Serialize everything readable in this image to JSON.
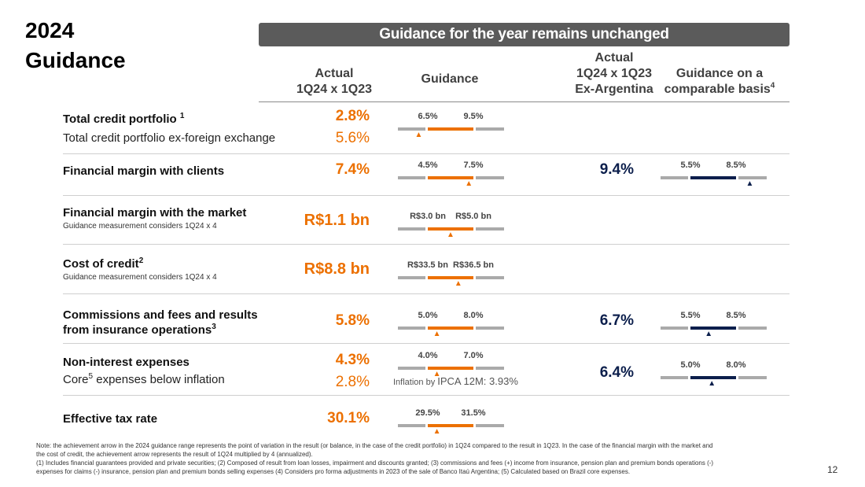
{
  "title": {
    "line1": "2024",
    "line2": "Guidance"
  },
  "banner": "Guidance for the year remains unchanged",
  "columns": {
    "actual": {
      "line1": "Actual",
      "line2": "1Q24 x 1Q23"
    },
    "guidance": "Guidance",
    "actual_ex_arg": {
      "line1": "Actual",
      "line2": "1Q24 x 1Q23",
      "line3": "Ex-Argentina"
    },
    "comparable": {
      "line1": "Guidance on a",
      "line2": "comparable basis",
      "sup": "4"
    }
  },
  "rows": [
    {
      "label": "Total credit portfolio ",
      "label_sup": "1",
      "sub_label": "Total credit portfolio  ex-foreign exchange",
      "actual": "2.8%",
      "sub_actual": "5.6%",
      "guidance": {
        "low": "6.5%",
        "high": "9.5%",
        "arrow_position": -0.2
      }
    },
    {
      "label": "Financial margin with clients",
      "actual": "7.4%",
      "guidance": {
        "low": "4.5%",
        "high": "7.5%",
        "arrow_position": 0.9
      },
      "actual_ex_arg": "9.4%",
      "comparable": {
        "low": "5.5%",
        "high": "8.5%",
        "arrow_position": 1.3
      }
    },
    {
      "label": "Financial margin with the market",
      "note": "Guidance measurement considers 1Q24 x 4",
      "actual": "R$1.1 bn",
      "guidance": {
        "low": "R$3.0 bn",
        "high": "R$5.0 bn",
        "arrow_position": 0.5
      }
    },
    {
      "label": "Cost of credit",
      "label_sup": "2",
      "note": "Guidance measurement considers 1Q24 x 4",
      "actual": "R$8.8 bn",
      "guidance": {
        "low": "R$33.5 bn",
        "high": "R$36.5 bn",
        "arrow_position": 0.67
      }
    },
    {
      "label": "Commissions and fees and results",
      "label_line2": "from insurance operations",
      "label_sup": "3",
      "actual": "5.8%",
      "guidance": {
        "low": "5.0%",
        "high": "8.0%",
        "arrow_position": 0.2
      },
      "actual_ex_arg": "6.7%",
      "comparable": {
        "low": "5.5%",
        "high": "8.5%",
        "arrow_position": 0.4
      }
    },
    {
      "label": "Non-interest expenses",
      "sub_label_prefix": "Core",
      "sub_label_sup": "5",
      "sub_label_suffix": " expenses below inflation",
      "actual": "4.3%",
      "sub_actual": "2.8%",
      "guidance": {
        "low": "4.0%",
        "high": "7.0%",
        "arrow_position": 0.2
      },
      "inflation_note_prefix": "Inflation by ",
      "inflation_note_value": "IPCA 12M: 3.93%",
      "actual_ex_arg": "6.4%",
      "comparable": {
        "low": "5.0%",
        "high": "8.0%",
        "arrow_position": 0.47
      }
    },
    {
      "label": "Effective tax rate",
      "actual": "30.1%",
      "guidance": {
        "low": "29.5%",
        "high": "31.5%",
        "arrow_position": 0.2
      }
    }
  ],
  "footnote": {
    "line1": "Note: the achievement arrow in the 2024 guidance range represents the point of variation in the result (or balance, in the case of the credit portfolio) in 1Q24 compared to the result in 1Q23. In the case of the financial margin with the market and",
    "line2": "the cost of credit, the achievement arrow represents the result of 1Q24 multiplied by 4 (annualized).",
    "line3": "(1) Includes financial guarantees provided and private securities; (2) Composed of result from loan losses, impairment and discounts granted; (3) commissions and fees (+) income from insurance, pension plan and premium bonds operations (-)",
    "line4": "expenses for claims (-) insurance, pension plan and premium bonds selling expenses (4) Considers pro forma adjustments in 2023 of the sale of Banco Itaú Argentina; (5) Calculated based on Brazil core expenses."
  },
  "page_number": "12",
  "colors": {
    "orange": "#ec7000",
    "navy": "#0c1f4c",
    "banner": "#5b5b5b",
    "grey_bar": "#aaaaaa"
  }
}
